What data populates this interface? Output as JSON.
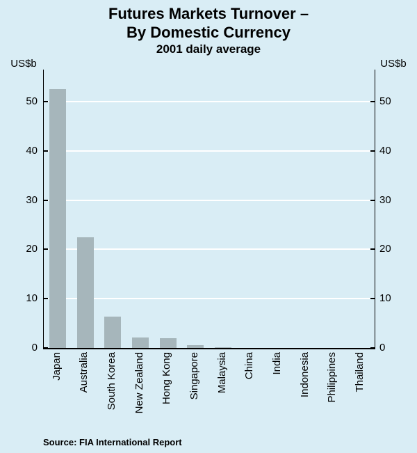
{
  "title": {
    "line1": "Futures Markets Turnover –",
    "line2": "By Domestic Currency"
  },
  "subtitle": "2001 daily average",
  "y_axis_unit_left": "US$b",
  "y_axis_unit_right": "US$b",
  "source": "Source: FIA International Report",
  "colors": {
    "background": "#d9edf5",
    "bar": "#a6b6bb",
    "gridline": "#ffffff",
    "axis": "#000000",
    "text": "#000000"
  },
  "chart_data": {
    "type": "bar",
    "title": "Futures Markets Turnover – By Domestic Currency",
    "subtitle": "2001 daily average",
    "xlabel": "",
    "ylabel": "US$b",
    "categories": [
      "Japan",
      "Australia",
      "South Korea",
      "New Zealand",
      "Hong Kong",
      "Singapore",
      "Malaysia",
      "China",
      "India",
      "Indonesia",
      "Philippines",
      "Thailand"
    ],
    "values": [
      52.5,
      22.5,
      6.3,
      2.1,
      2.0,
      0.5,
      0.15,
      0,
      0,
      0,
      0,
      0
    ],
    "ylim": [
      0,
      56.5
    ],
    "yticks": [
      0,
      10,
      20,
      30,
      40,
      50
    ],
    "grid": "horizontal-white",
    "legend": "none",
    "bar_orientation": "vertical",
    "category_label_rotation": 90
  }
}
